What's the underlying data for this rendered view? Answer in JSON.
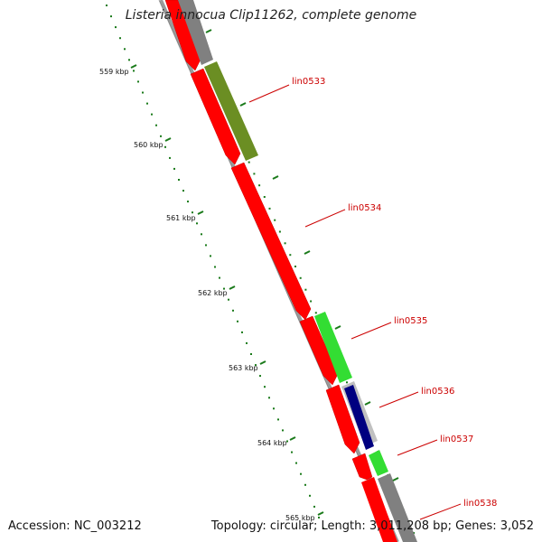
{
  "title": "Listeria innocua Clip11262, complete genome",
  "footer": {
    "accession": "Accession: NC_003212",
    "summary": "Topology: circular; Length: 3,011,208 bp; Genes: 3,052"
  },
  "ruler": {
    "ticks": [
      "559 kbp",
      "560 kbp",
      "561 kbp",
      "562 kbp",
      "563 kbp",
      "564 kbp",
      "565 kbp"
    ]
  },
  "genes": [
    {
      "label": "lin0533",
      "color": "#6b8e23"
    },
    {
      "label": "lin0534",
      "color": "#ff0000"
    },
    {
      "label": "lin0535",
      "color": "#33dd33"
    },
    {
      "label": "lin0536",
      "color": "#000080"
    },
    {
      "label": "lin0537",
      "color": "#33dd33"
    },
    {
      "label": "lin0538",
      "color": "#ff0000"
    }
  ],
  "colors": {
    "cds": "#ff0000",
    "backbone": "#808080",
    "tick": "#1a7a1a"
  }
}
